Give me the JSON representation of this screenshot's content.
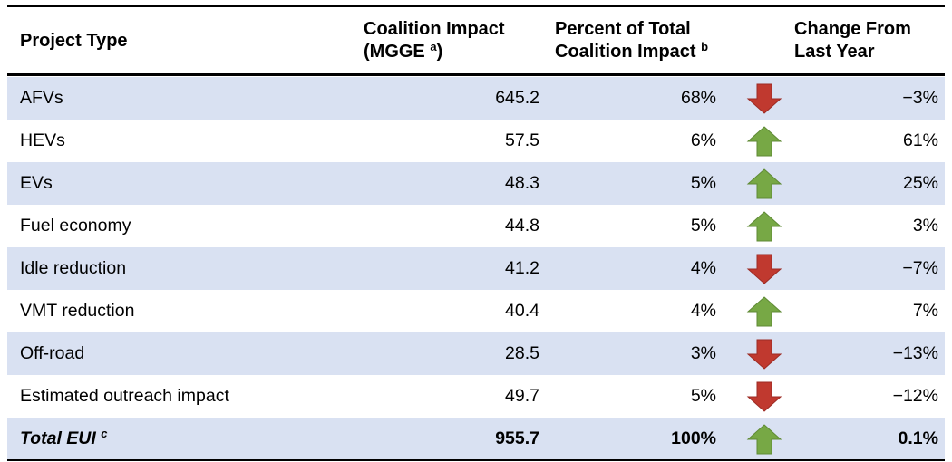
{
  "table": {
    "header": {
      "project": "Project Type",
      "impact": {
        "line1": "Coalition Impact",
        "line2": "(MGGE",
        "sup": "a",
        "after": ")"
      },
      "percent": {
        "line1": "Percent of Total",
        "line2": "Coalition Impact",
        "sup": "b"
      },
      "change": {
        "line1": "Change From",
        "line2": "Last Year"
      }
    },
    "rows": [
      {
        "project": "AFVs",
        "impact": "645.2",
        "percent": "68%",
        "change": "−3%",
        "trend": "down"
      },
      {
        "project": "HEVs",
        "impact": "57.5",
        "percent": "6%",
        "change": "61%",
        "trend": "up"
      },
      {
        "project": "EVs",
        "impact": "48.3",
        "percent": "5%",
        "change": "25%",
        "trend": "up"
      },
      {
        "project": "Fuel economy",
        "impact": "44.8",
        "percent": "5%",
        "change": "3%",
        "trend": "up"
      },
      {
        "project": "Idle reduction",
        "impact": "41.2",
        "percent": "4%",
        "change": "−7%",
        "trend": "down"
      },
      {
        "project": "VMT reduction",
        "impact": "40.4",
        "percent": "4%",
        "change": "7%",
        "trend": "up"
      },
      {
        "project": "Off-road",
        "impact": "28.5",
        "percent": "3%",
        "change": "−13%",
        "trend": "down"
      },
      {
        "project": "Estimated outreach impact",
        "impact": "49.7",
        "percent": "5%",
        "change": "−12%",
        "trend": "down"
      }
    ],
    "total": {
      "project": "Total EUI",
      "sup": "c",
      "impact": "955.7",
      "percent": "100%",
      "change": "0.1%",
      "trend": "up"
    }
  }
}
